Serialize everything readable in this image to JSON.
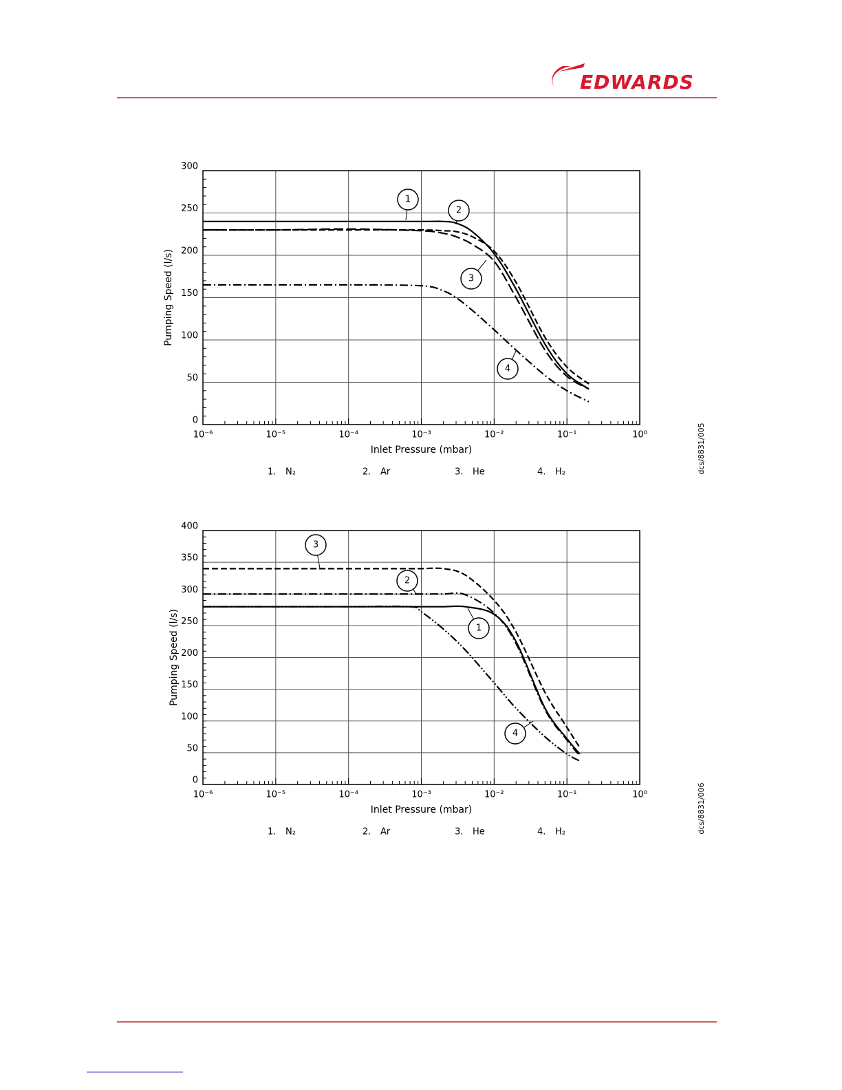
{
  "header": {
    "logo": "EDWARDS"
  },
  "chart_data": [
    {
      "type": "line",
      "x_scale": "log",
      "grid": true,
      "xlabel": "Inlet Pressure (mbar)",
      "ylabel": "Pumping Speed (l/s)",
      "side_note": "dcs/8831/005",
      "xlim": [
        1e-06,
        1
      ],
      "xticks": [
        {
          "value": 1e-06,
          "label": "10⁻⁶"
        },
        {
          "value": 1e-05,
          "label": "10⁻⁵"
        },
        {
          "value": 0.0001,
          "label": "10⁻⁴"
        },
        {
          "value": 0.001,
          "label": "10⁻³"
        },
        {
          "value": 0.01,
          "label": "10⁻²"
        },
        {
          "value": 0.1,
          "label": "10⁻¹"
        },
        {
          "value": 1,
          "label": "10⁰"
        }
      ],
      "ylim": [
        0,
        300
      ],
      "yticks": [
        0,
        50,
        100,
        150,
        200,
        250,
        300
      ],
      "x": [
        1e-06,
        1e-05,
        0.0001,
        0.001,
        0.002,
        0.003,
        0.005,
        0.01,
        0.02,
        0.05,
        0.1,
        0.2
      ],
      "series": [
        {
          "name": "N₂",
          "number": "1",
          "legend_number": "1.",
          "color": "#000000",
          "line_style": "solid",
          "values": [
            240,
            240,
            240,
            240,
            240,
            238,
            228,
            202,
            160,
            95,
            60,
            42
          ]
        },
        {
          "name": "Ar",
          "number": "2",
          "legend_number": "2.",
          "color": "#000000",
          "line_style": "dashed",
          "values": [
            230,
            230,
            230,
            230,
            229,
            228,
            222,
            205,
            168,
            103,
            68,
            48
          ]
        },
        {
          "name": "He",
          "number": "3",
          "legend_number": "3.",
          "color": "#000000",
          "line_style": "long-dash",
          "values": [
            230,
            230,
            231,
            229,
            226,
            222,
            213,
            193,
            150,
            88,
            57,
            42
          ]
        },
        {
          "name": "H₂",
          "number": "4",
          "legend_number": "4.",
          "color": "#000000",
          "line_style": "dash-dot",
          "values": [
            165,
            165,
            165,
            164,
            158,
            150,
            135,
            112,
            88,
            58,
            40,
            27
          ]
        }
      ]
    },
    {
      "type": "line",
      "x_scale": "log",
      "grid": true,
      "xlabel": "Inlet Pressure (mbar)",
      "ylabel": "Pumping Speed (l/s)",
      "side_note": "dcs/8831/006",
      "xlim": [
        1e-06,
        1
      ],
      "xticks": [
        {
          "value": 1e-06,
          "label": "10⁻⁶"
        },
        {
          "value": 1e-05,
          "label": "10⁻⁵"
        },
        {
          "value": 0.0001,
          "label": "10⁻⁴"
        },
        {
          "value": 0.001,
          "label": "10⁻³"
        },
        {
          "value": 0.01,
          "label": "10⁻²"
        },
        {
          "value": 0.1,
          "label": "10⁻¹"
        },
        {
          "value": 1,
          "label": "10⁰"
        }
      ],
      "ylim": [
        0,
        400
      ],
      "yticks": [
        0,
        50,
        100,
        150,
        200,
        250,
        300,
        350,
        400
      ],
      "x": [
        1e-06,
        1e-05,
        0.0001,
        0.0007,
        0.001,
        0.002,
        0.004,
        0.01,
        0.02,
        0.05,
        0.1,
        0.15
      ],
      "series": [
        {
          "name": "N₂",
          "number": "1",
          "legend_number": "1.",
          "color": "#000000",
          "line_style": "solid",
          "values": [
            280,
            280,
            280,
            280,
            280,
            280,
            280,
            268,
            225,
            120,
            72,
            48
          ]
        },
        {
          "name": "Ar",
          "number": "2",
          "legend_number": "2.",
          "color": "#000000",
          "line_style": "dash-dot",
          "values": [
            300,
            300,
            300,
            300,
            300,
            300,
            299,
            270,
            222,
            118,
            70,
            45
          ]
        },
        {
          "name": "He",
          "number": "3",
          "legend_number": "3.",
          "color": "#000000",
          "line_style": "dashed",
          "values": [
            340,
            340,
            340,
            340,
            340,
            340,
            330,
            290,
            240,
            145,
            90,
            58
          ]
        },
        {
          "name": "H₂",
          "number": "4",
          "legend_number": "4.",
          "color": "#000000",
          "line_style": "dash-dot-dot",
          "values": [
            280,
            280,
            280,
            280,
            272,
            245,
            212,
            160,
            120,
            75,
            48,
            37
          ]
        }
      ]
    }
  ]
}
